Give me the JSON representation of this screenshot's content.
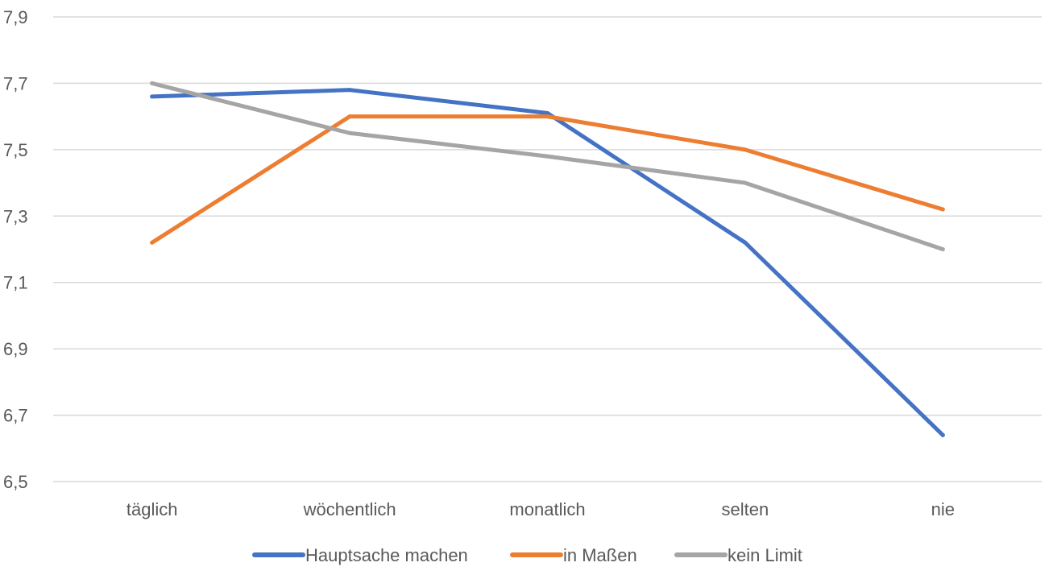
{
  "chart_data": {
    "type": "line",
    "categories": [
      "täglich",
      "wöchentlich",
      "monatlich",
      "selten",
      "nie"
    ],
    "ylim": [
      6.5,
      7.9
    ],
    "y_ticks": [
      6.5,
      6.7,
      6.9,
      7.1,
      7.3,
      7.5,
      7.7,
      7.9
    ],
    "y_tick_labels": [
      "6,5",
      "6,7",
      "6,9",
      "7,1",
      "7,3",
      "7,5",
      "7,7",
      "7,9"
    ],
    "grid": true,
    "legend_position": "bottom",
    "series": [
      {
        "name": "Hauptsache machen",
        "color": "#4472C4",
        "values": [
          7.66,
          7.68,
          7.61,
          7.22,
          6.64
        ]
      },
      {
        "name": "in Maßen",
        "color": "#ED7D31",
        "values": [
          7.22,
          7.6,
          7.6,
          7.5,
          7.32
        ]
      },
      {
        "name": "kein Limit",
        "color": "#A5A5A5",
        "values": [
          7.7,
          7.55,
          7.48,
          7.4,
          7.2
        ]
      }
    ]
  }
}
